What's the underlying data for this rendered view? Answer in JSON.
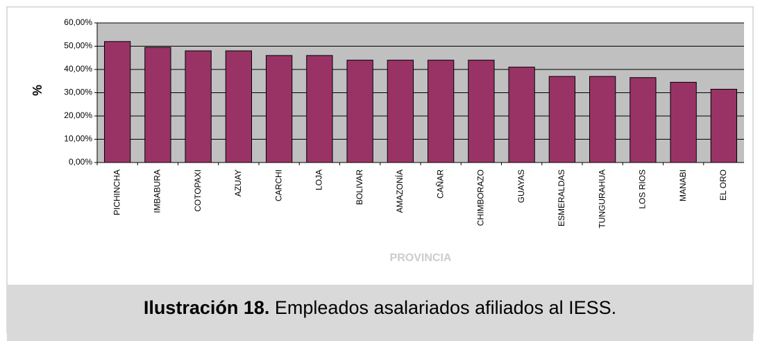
{
  "chart_data": {
    "type": "bar",
    "y_label": "%",
    "x_label": "PROVINCIA",
    "categories": [
      "PICHINCHA",
      "IMBABURA",
      "COTOPAXI",
      "AZUAY",
      "CARCHI",
      "LOJA",
      "BOLIVAR",
      "AMAZONÍA",
      "CAÑAR",
      "CHIMBORAZO",
      "GUAYAS",
      "ESMERALDAS",
      "TUNGURAHUA",
      "LOS RIOS",
      "MANABI",
      "EL ORO"
    ],
    "values": [
      52,
      49.5,
      48,
      48,
      46,
      46,
      44,
      44,
      44,
      44,
      41,
      37,
      37,
      36.5,
      34.5,
      31.5
    ],
    "color": "#993366",
    "ylim": [
      0,
      60
    ],
    "yticks": [
      {
        "value": 0,
        "label": "0,00%"
      },
      {
        "value": 10,
        "label": "10,00%"
      },
      {
        "value": 20,
        "label": "20,00%"
      },
      {
        "value": 30,
        "label": "30,00%"
      },
      {
        "value": 40,
        "label": "40,00%"
      },
      {
        "value": 50,
        "label": "50,00%"
      },
      {
        "value": 60,
        "label": "60,00%"
      }
    ],
    "grid": true
  },
  "caption": {
    "label": "Ilustración 18.",
    "text": "Empleados asalariados afiliados al IESS."
  }
}
